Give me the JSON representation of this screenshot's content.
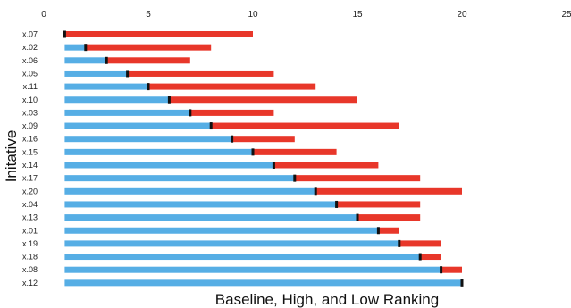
{
  "chart_data": {
    "type": "bar",
    "orientation": "horizontal-floating",
    "xlabel": "Baseline, High, and Low Ranking",
    "ylabel": "Initative",
    "xlim": [
      0,
      25
    ],
    "x_ticks": [
      "0",
      "5",
      "10",
      "15",
      "20",
      "25"
    ],
    "grid": false,
    "legend": "none",
    "categories": [
      "x.07",
      "x.02",
      "x.06",
      "x.05",
      "x.11",
      "x.10",
      "x.03",
      "x.09",
      "x.16",
      "x.15",
      "x.14",
      "x.17",
      "x.20",
      "x.04",
      "x.13",
      "x.01",
      "x.19",
      "x.18",
      "x.08",
      "x.12"
    ],
    "series": [
      {
        "color": "#56aee5",
        "low": [
          1,
          1,
          1,
          1,
          1,
          1,
          1,
          1,
          1,
          1,
          1,
          1,
          1,
          1,
          1,
          1,
          1,
          1,
          1,
          1
        ],
        "baseline": [
          1,
          2,
          3,
          4,
          5,
          6,
          7,
          8,
          9,
          10,
          11,
          12,
          13,
          14,
          15,
          16,
          17,
          18,
          19,
          20
        ]
      },
      {
        "color": "#e8372a",
        "high": [
          10,
          8,
          7,
          11,
          13,
          15,
          11,
          17,
          12,
          14,
          16,
          18,
          20,
          18,
          18,
          17,
          19,
          19,
          20,
          20
        ]
      }
    ],
    "baseline_marker_color": "#111111"
  }
}
